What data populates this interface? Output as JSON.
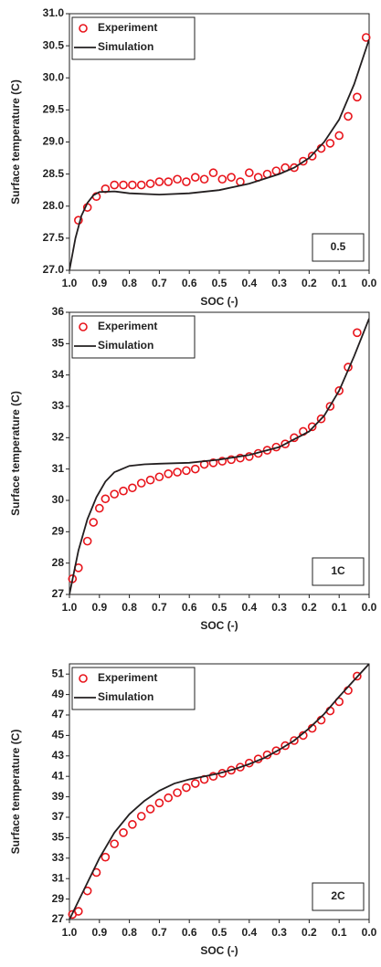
{
  "chart_data": [
    {
      "type": "line",
      "annotation": "0.5",
      "xlabel": "SOC (-)",
      "ylabel": "Surface temperature (C)",
      "xlim": [
        1.0,
        0.0
      ],
      "ylim": [
        27.0,
        31.0
      ],
      "xticks": [
        {
          "value": 1.0,
          "label": "1.0"
        },
        0.9,
        0.8,
        0.7,
        0.6,
        0.5,
        0.4,
        0.3,
        0.2,
        0.1,
        {
          "value": 0.0,
          "label": "0.0"
        }
      ],
      "yticks": [
        {
          "value": 27,
          "label": "27.0"
        },
        27.5,
        {
          "value": 28,
          "label": "28.0"
        },
        28.5,
        {
          "value": 29,
          "label": "29.0"
        },
        29.5,
        {
          "value": 30,
          "label": "30.0"
        },
        30.5,
        {
          "value": 31,
          "label": "31.0"
        }
      ],
      "legend": "upper left",
      "series": [
        {
          "name": "Experiment",
          "type": "scatter",
          "color": "#e8141b",
          "x": [
            0.97,
            0.94,
            0.91,
            0.88,
            0.85,
            0.82,
            0.79,
            0.76,
            0.73,
            0.7,
            0.67,
            0.64,
            0.61,
            0.58,
            0.55,
            0.52,
            0.49,
            0.46,
            0.43,
            0.4,
            0.37,
            0.34,
            0.31,
            0.28,
            0.25,
            0.22,
            0.19,
            0.16,
            0.13,
            0.1,
            0.07,
            0.04,
            0.01
          ],
          "values": [
            27.78,
            27.98,
            28.15,
            28.27,
            28.33,
            28.33,
            28.33,
            28.33,
            28.35,
            28.38,
            28.38,
            28.42,
            28.38,
            28.45,
            28.42,
            28.52,
            28.42,
            28.45,
            28.38,
            28.52,
            28.45,
            28.5,
            28.55,
            28.6,
            28.6,
            28.7,
            28.78,
            28.9,
            28.98,
            29.1,
            29.4,
            29.7,
            30.63
          ]
        },
        {
          "name": "Simulation",
          "type": "line",
          "color": "#231f20",
          "x": [
            1.0,
            0.98,
            0.96,
            0.94,
            0.92,
            0.9,
            0.85,
            0.8,
            0.7,
            0.6,
            0.5,
            0.4,
            0.3,
            0.25,
            0.2,
            0.15,
            0.1,
            0.05,
            0.0
          ],
          "values": [
            27.0,
            27.5,
            27.85,
            28.05,
            28.17,
            28.22,
            28.23,
            28.2,
            28.18,
            28.2,
            28.25,
            28.35,
            28.5,
            28.6,
            28.75,
            29.0,
            29.35,
            29.9,
            30.6
          ]
        }
      ]
    },
    {
      "type": "line",
      "annotation": "1C",
      "xlabel": "SOC (-)",
      "ylabel": "Surface temperature (C)",
      "xlim": [
        1.0,
        0.0
      ],
      "ylim": [
        27,
        36
      ],
      "xticks": [
        {
          "value": 1.0,
          "label": "1.0"
        },
        0.9,
        0.8,
        0.7,
        0.6,
        0.5,
        0.4,
        0.3,
        0.2,
        0.1,
        {
          "value": 0.0,
          "label": "0.0"
        }
      ],
      "yticks": [
        27,
        28,
        29,
        30,
        31,
        32,
        33,
        34,
        35,
        36
      ],
      "legend": "upper left",
      "series": [
        {
          "name": "Experiment",
          "type": "scatter",
          "color": "#e8141b",
          "x": [
            0.99,
            0.97,
            0.94,
            0.92,
            0.9,
            0.88,
            0.85,
            0.82,
            0.79,
            0.76,
            0.73,
            0.7,
            0.67,
            0.64,
            0.61,
            0.58,
            0.55,
            0.52,
            0.49,
            0.46,
            0.43,
            0.4,
            0.37,
            0.34,
            0.31,
            0.28,
            0.25,
            0.22,
            0.19,
            0.16,
            0.13,
            0.1,
            0.07,
            0.04
          ],
          "values": [
            27.5,
            27.85,
            28.7,
            29.3,
            29.75,
            30.05,
            30.2,
            30.3,
            30.4,
            30.55,
            30.65,
            30.75,
            30.85,
            30.9,
            30.95,
            31.0,
            31.15,
            31.2,
            31.25,
            31.3,
            31.35,
            31.4,
            31.5,
            31.6,
            31.7,
            31.8,
            32.0,
            32.2,
            32.35,
            32.6,
            33.0,
            33.5,
            34.25,
            35.35
          ]
        },
        {
          "name": "Simulation",
          "type": "line",
          "color": "#231f20",
          "x": [
            1.0,
            0.97,
            0.94,
            0.91,
            0.88,
            0.85,
            0.8,
            0.75,
            0.7,
            0.6,
            0.5,
            0.4,
            0.3,
            0.2,
            0.15,
            0.1,
            0.05,
            0.0
          ],
          "values": [
            27.0,
            28.4,
            29.4,
            30.1,
            30.6,
            30.9,
            31.1,
            31.15,
            31.17,
            31.2,
            31.3,
            31.45,
            31.7,
            32.2,
            32.7,
            33.5,
            34.6,
            35.8
          ]
        }
      ]
    },
    {
      "type": "line",
      "annotation": "2C",
      "xlabel": "SOC (-)",
      "ylabel": "Surface temperature (C)",
      "xlim": [
        1.0,
        0.0
      ],
      "ylim": [
        27,
        52
      ],
      "xticks": [
        {
          "value": 1.0,
          "label": "1.0"
        },
        0.9,
        0.8,
        0.7,
        0.6,
        0.5,
        0.4,
        0.3,
        0.2,
        0.1,
        {
          "value": 0.0,
          "label": "0.0"
        }
      ],
      "yticks": [
        27,
        29,
        31,
        33,
        35,
        37,
        39,
        41,
        43,
        45,
        47,
        49,
        51
      ],
      "legend": "upper left",
      "series": [
        {
          "name": "Experiment",
          "type": "scatter",
          "color": "#e8141b",
          "x": [
            0.99,
            0.97,
            0.94,
            0.91,
            0.88,
            0.85,
            0.82,
            0.79,
            0.76,
            0.73,
            0.7,
            0.67,
            0.64,
            0.61,
            0.58,
            0.55,
            0.52,
            0.49,
            0.46,
            0.43,
            0.4,
            0.37,
            0.34,
            0.31,
            0.28,
            0.25,
            0.22,
            0.19,
            0.16,
            0.13,
            0.1,
            0.07,
            0.04
          ],
          "values": [
            27.5,
            27.8,
            29.8,
            31.6,
            33.1,
            34.4,
            35.5,
            36.3,
            37.1,
            37.8,
            38.4,
            38.9,
            39.4,
            39.9,
            40.3,
            40.7,
            41.0,
            41.3,
            41.6,
            41.9,
            42.3,
            42.7,
            43.1,
            43.5,
            44.0,
            44.5,
            45.0,
            45.7,
            46.5,
            47.4,
            48.3,
            49.4,
            50.8
          ]
        },
        {
          "name": "Simulation",
          "type": "line",
          "color": "#231f20",
          "x": [
            1.0,
            0.95,
            0.9,
            0.85,
            0.8,
            0.75,
            0.7,
            0.65,
            0.6,
            0.55,
            0.5,
            0.45,
            0.4,
            0.35,
            0.3,
            0.25,
            0.2,
            0.15,
            0.1,
            0.05,
            0.0
          ],
          "values": [
            27.0,
            30.0,
            33.0,
            35.5,
            37.3,
            38.6,
            39.6,
            40.3,
            40.7,
            41.0,
            41.3,
            41.7,
            42.2,
            42.8,
            43.6,
            44.5,
            45.7,
            47.1,
            48.8,
            50.4,
            52.0
          ]
        }
      ]
    }
  ]
}
